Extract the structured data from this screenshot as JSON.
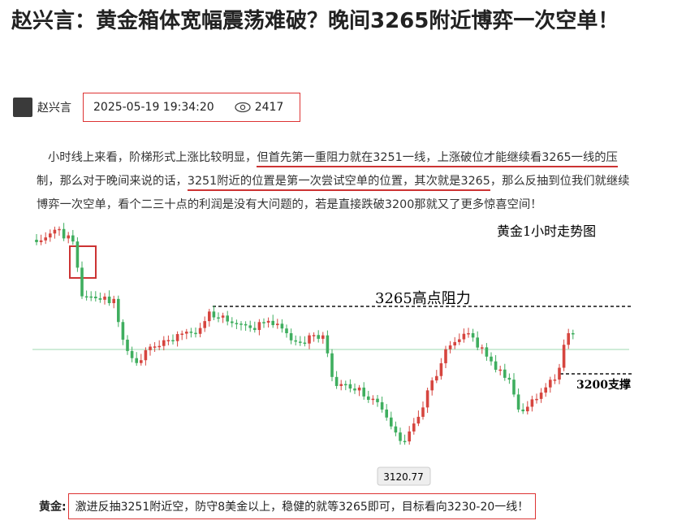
{
  "header": {
    "title": "赵兴言：黄金箱体宽幅震荡难破？晚间3265附近博弈一次空单！"
  },
  "meta": {
    "author": "赵兴言",
    "datetime": "2025-05-19 19:34:20",
    "views": "2417"
  },
  "article": {
    "segments": [
      {
        "text": "小时线上来看，阶梯形式上涨比较明显，",
        "underline": false
      },
      {
        "text": "但首先第一重阻力就在3251一线，",
        "underline": true
      },
      {
        "text": "上涨破位才能继续看3265一线的压",
        "underline": true
      },
      {
        "text": "制，那么对于晚间来说的话，",
        "underline": false
      },
      {
        "text": "3251附近的位置是第一次尝试空单的位置，其次就是3265",
        "underline": true
      },
      {
        "text": "，那么反抽到位我们就继续博弈一次空单，看个二三十点的利润是没有大问题的，若是直接跌破3200那就又了更多惊喜空间！",
        "underline": false
      }
    ]
  },
  "chart": {
    "caption": "黄金1小时走势图",
    "resistance_label": "3265高点阻力",
    "support_label": "3200支撑",
    "low_label": "3120.77"
  },
  "footer": {
    "label": "黄金:",
    "text": "激进反抽3251附近空，防守8美金以上，稳健的就等3265即可，目标看向3230-20一线！"
  }
}
